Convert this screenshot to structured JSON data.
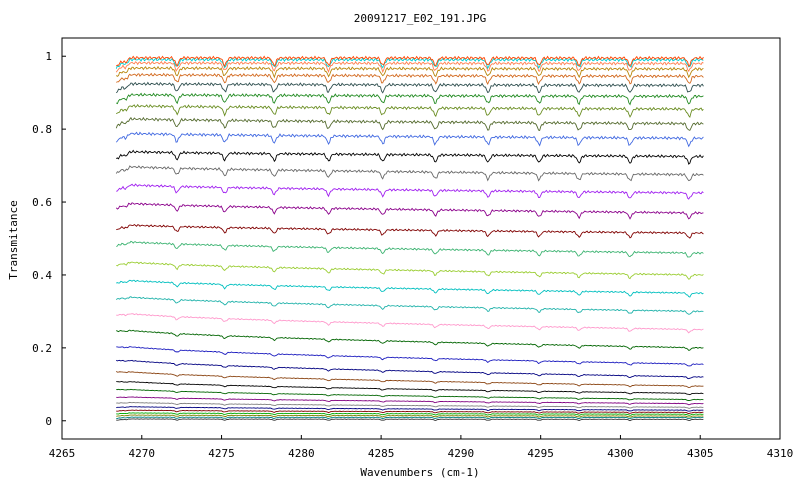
{
  "chart_data": {
    "type": "line",
    "title": "20091217_E02_191.JPG",
    "xlabel": "Wavenumbers (cm-1)",
    "ylabel": "Transmitance",
    "xlim": [
      4265,
      4310
    ],
    "ylim": [
      -0.05,
      1.05
    ],
    "x_ticks": [
      4265,
      4270,
      4275,
      4280,
      4285,
      4290,
      4295,
      4300,
      4305,
      4310
    ],
    "y_ticks": [
      0,
      0.2,
      0.4,
      0.6,
      0.8,
      1
    ],
    "x_tick_labels": [
      "4265",
      "4270",
      "4275",
      "4280",
      "4285",
      "4290",
      "4295",
      "4300",
      "4305",
      "4310"
    ],
    "y_tick_labels": [
      "0",
      "0.2",
      "0.4",
      "0.6",
      "0.8",
      "1"
    ],
    "grid": false,
    "legend": "none",
    "x_range": [
      4268.4,
      4305.2
    ],
    "absorption_lines": [
      4269.0,
      4272.2,
      4275.2,
      4278.3,
      4281.7,
      4285.1,
      4288.4,
      4291.7,
      4294.9,
      4297.4,
      4300.6,
      4304.3
    ],
    "series": [
      {
        "color": "#333333",
        "start": 0.005,
        "end": 0.004
      },
      {
        "color": "#008080",
        "start": 0.01,
        "end": 0.009
      },
      {
        "color": "#808000",
        "start": 0.016,
        "end": 0.013
      },
      {
        "color": "#00aa00",
        "start": 0.022,
        "end": 0.018
      },
      {
        "color": "#800000",
        "start": 0.03,
        "end": 0.023
      },
      {
        "color": "#000080",
        "start": 0.04,
        "end": 0.029
      },
      {
        "color": "#808080",
        "start": 0.052,
        "end": 0.037
      },
      {
        "color": "#800080",
        "start": 0.068,
        "end": 0.047
      },
      {
        "color": "#006400",
        "start": 0.09,
        "end": 0.058
      },
      {
        "color": "#000000",
        "start": 0.112,
        "end": 0.075
      },
      {
        "color": "#8b4513",
        "start": 0.14,
        "end": 0.095
      },
      {
        "color": "#000080",
        "start": 0.172,
        "end": 0.12
      },
      {
        "color": "#1c1cbf",
        "start": 0.21,
        "end": 0.155
      },
      {
        "color": "#006400",
        "start": 0.255,
        "end": 0.2
      },
      {
        "color": "#ff99cc",
        "start": 0.3,
        "end": 0.25
      },
      {
        "color": "#20b2aa",
        "start": 0.345,
        "end": 0.3
      },
      {
        "color": "#00bfbf",
        "start": 0.39,
        "end": 0.35
      },
      {
        "color": "#9acd32",
        "start": 0.44,
        "end": 0.4
      },
      {
        "color": "#3cb371",
        "start": 0.495,
        "end": 0.46
      },
      {
        "color": "#800000",
        "start": 0.54,
        "end": 0.515
      },
      {
        "color": "#8b008b",
        "start": 0.6,
        "end": 0.57
      },
      {
        "color": "#a020f0",
        "start": 0.65,
        "end": 0.625
      },
      {
        "color": "#696969",
        "start": 0.7,
        "end": 0.675
      },
      {
        "color": "#000000",
        "start": 0.74,
        "end": 0.725
      },
      {
        "color": "#4169e1",
        "start": 0.79,
        "end": 0.775
      },
      {
        "color": "#556b2f",
        "start": 0.83,
        "end": 0.815
      },
      {
        "color": "#6b8e23",
        "start": 0.865,
        "end": 0.855
      },
      {
        "color": "#228b22",
        "start": 0.895,
        "end": 0.89
      },
      {
        "color": "#2f4f4f",
        "start": 0.925,
        "end": 0.92
      },
      {
        "color": "#d2691e",
        "start": 0.95,
        "end": 0.945
      },
      {
        "color": "#b8860b",
        "start": 0.968,
        "end": 0.965
      },
      {
        "color": "#ff7f50",
        "start": 0.982,
        "end": 0.98
      },
      {
        "color": "#00ced1",
        "start": 0.991,
        "end": 0.99
      },
      {
        "color": "#ff4500",
        "start": 0.996,
        "end": 0.995
      }
    ]
  }
}
